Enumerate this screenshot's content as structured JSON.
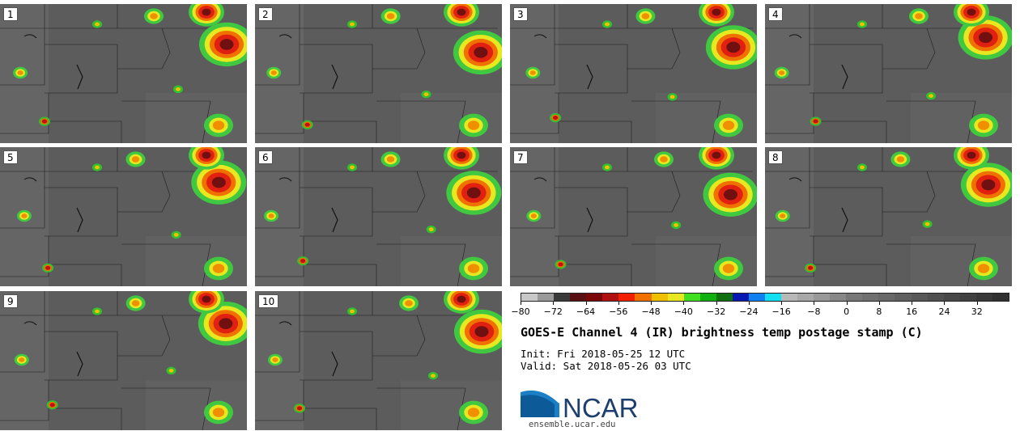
{
  "panels": [
    "1",
    "2",
    "3",
    "4",
    "5",
    "6",
    "7",
    "8",
    "9",
    "10"
  ],
  "colorbar": {
    "colors": [
      "#c8c8c8",
      "#9a9a9a",
      "#3a3a3a",
      "#5a1010",
      "#7a0808",
      "#b01010",
      "#f02000",
      "#f07000",
      "#f0c000",
      "#e8e820",
      "#40e020",
      "#10b010",
      "#107010",
      "#0818b0",
      "#1080f0",
      "#10e0f0",
      "#b8b8b8",
      "#a8a8a8",
      "#989898",
      "#888888",
      "#787878",
      "#707070",
      "#686868",
      "#606060",
      "#585858",
      "#505050",
      "#484848",
      "#404040",
      "#383838",
      "#303030"
    ],
    "ticks": [
      "−80",
      "−72",
      "−64",
      "−56",
      "−48",
      "−40",
      "−32",
      "−24",
      "−16",
      "−8",
      "0",
      "8",
      "16",
      "24",
      "32"
    ],
    "min": -80,
    "max": 40
  },
  "title": "GOES-E Channel 4 (IR) brightness temp postage stamp (C)",
  "init": "Init: Fri 2018-05-25 12 UTC",
  "valid": "Valid: Sat 2018-05-26 03 UTC",
  "logo": {
    "text": "NCAR",
    "url": "ensemble.ucar.edu"
  }
}
